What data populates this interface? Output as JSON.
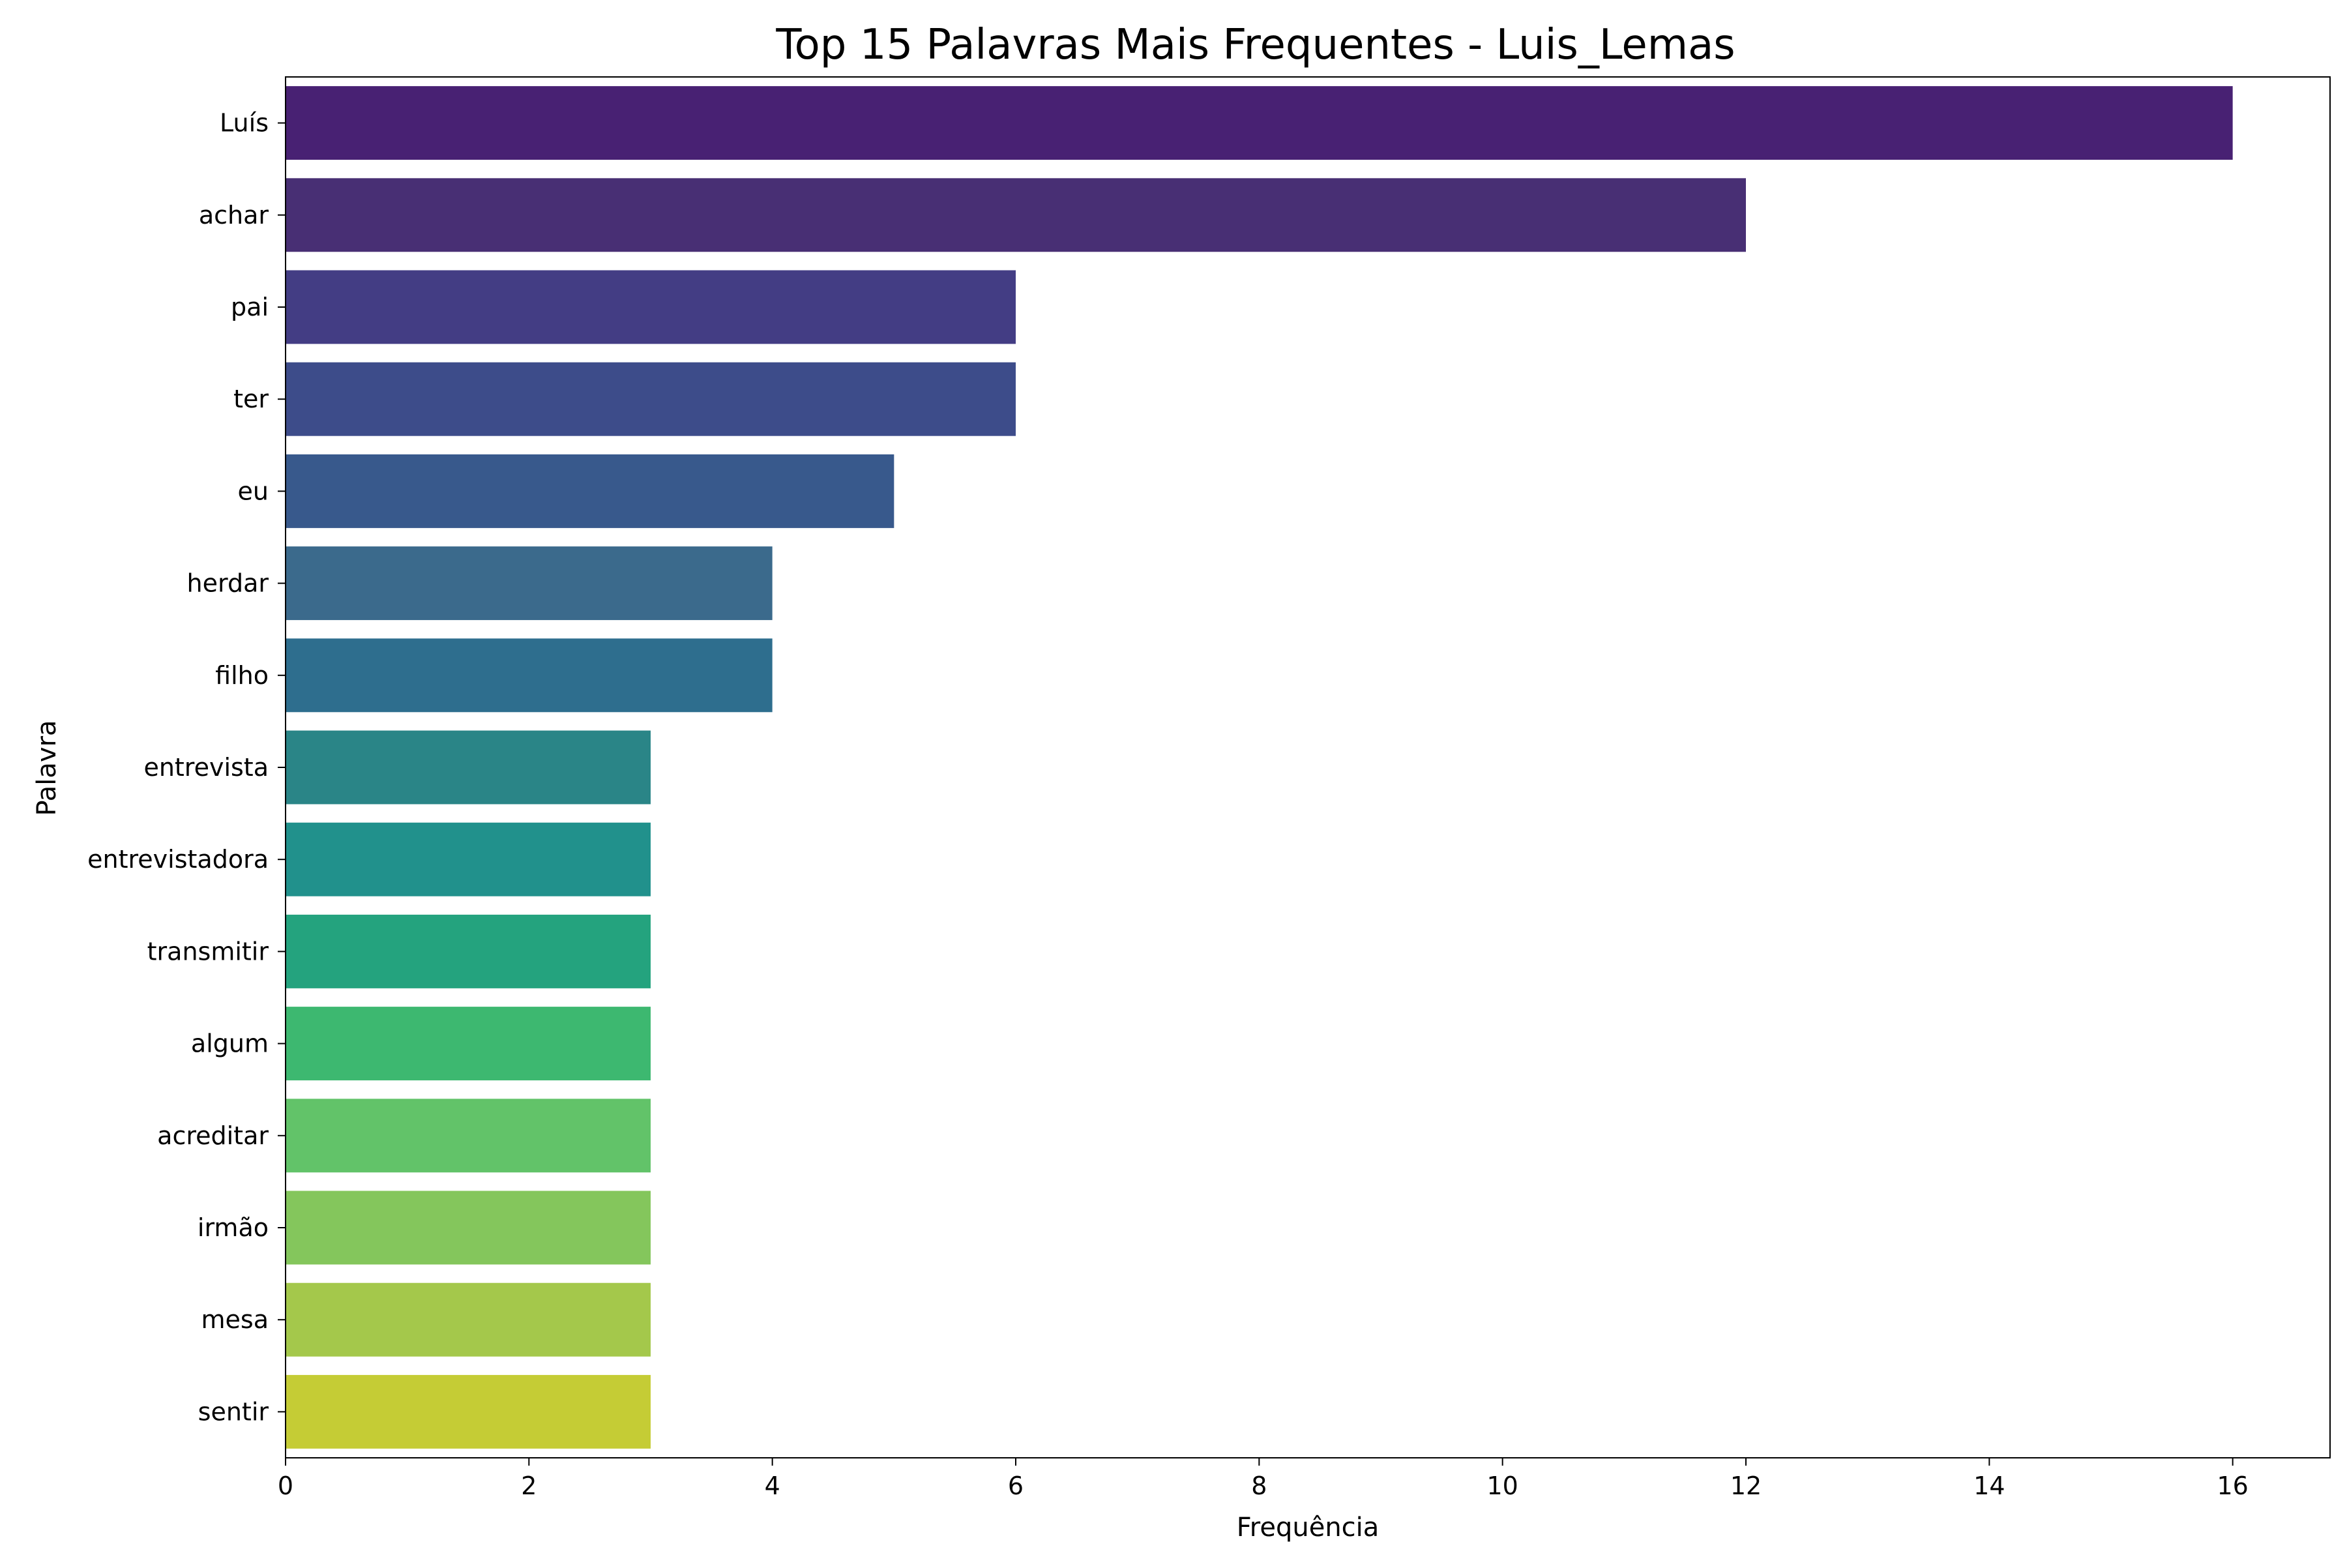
{
  "chart_data": {
    "type": "bar",
    "orientation": "horizontal",
    "title": "Top 15 Palavras Mais Frequentes - Luis_Lemas",
    "xlabel": "Frequência",
    "ylabel": "Palavra",
    "xlim": [
      0,
      16.8
    ],
    "xticks": [
      0,
      2,
      4,
      6,
      8,
      10,
      12,
      14,
      16
    ],
    "grid": false,
    "legend": "none",
    "categories": [
      "Luís",
      "achar",
      "pai",
      "ter",
      "eu",
      "herdar",
      "filho",
      "entrevista",
      "entrevistadora",
      "transmitir",
      "algum",
      "acreditar",
      "irmão",
      "mesa",
      "sentir"
    ],
    "values": [
      16,
      12,
      6,
      6,
      5,
      4,
      4,
      3,
      3,
      3,
      3,
      3,
      3,
      3,
      3
    ],
    "colors": [
      "#482173",
      "#482f74",
      "#433d84",
      "#3d4c8a",
      "#38598c",
      "#3b6a8c",
      "#2e6e8e",
      "#2a8587",
      "#21918c",
      "#24a37e",
      "#3db870",
      "#62c369",
      "#84c65c",
      "#a4c84b",
      "#c5cc35"
    ]
  }
}
